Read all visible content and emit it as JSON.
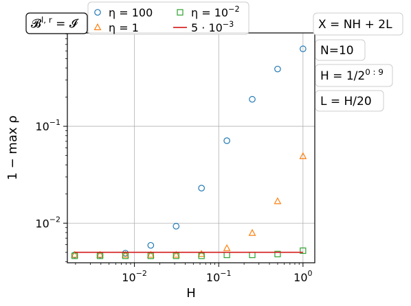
{
  "chart_data": {
    "type": "scatter",
    "x_scale": "log",
    "y_scale": "log",
    "grid": true,
    "xlabel": "H",
    "ylabel": "1 − max ρ",
    "xlim": [
      0.0016,
      1.38
    ],
    "ylim": [
      0.0039,
      0.92
    ],
    "x_ticks": [
      {
        "value": 0.01,
        "base": "10",
        "exp": "−2"
      },
      {
        "value": 0.1,
        "base": "10",
        "exp": "−1"
      },
      {
        "value": 1,
        "base": "10",
        "exp": "0"
      }
    ],
    "y_ticks": [
      {
        "value": 0.01,
        "base": "10",
        "exp": "−2"
      },
      {
        "value": 0.1,
        "base": "10",
        "exp": "−1"
      }
    ],
    "series": [
      {
        "name_parts": [
          "η = 100"
        ],
        "marker": "circle",
        "color": "#1f77b4",
        "x": [
          0.001953125,
          0.00390625,
          0.0078125,
          0.015625,
          0.03125,
          0.0625,
          0.125,
          0.25,
          0.5,
          1
        ],
        "y": [
          0.0047,
          0.0047,
          0.0049,
          0.0059,
          0.0093,
          0.023,
          0.071,
          0.19,
          0.39,
          0.63
        ]
      },
      {
        "name_parts": [
          "η = 1"
        ],
        "marker": "triangle",
        "color": "#ff7f0e",
        "x": [
          0.001953125,
          0.00390625,
          0.0078125,
          0.015625,
          0.03125,
          0.0625,
          0.125,
          0.25,
          0.5,
          1
        ],
        "y": [
          0.0047,
          0.0047,
          0.0047,
          0.0047,
          0.0047,
          0.0048,
          0.0055,
          0.0079,
          0.0168,
          0.049
        ]
      },
      {
        "name_parts": [
          "η = 10",
          "−2"
        ],
        "marker": "square",
        "color": "#2ca02c",
        "x": [
          0.001953125,
          0.00390625,
          0.0078125,
          0.015625,
          0.03125,
          0.0625,
          0.125,
          0.25,
          0.5,
          1
        ],
        "y": [
          0.0046,
          0.0046,
          0.0046,
          0.0046,
          0.0046,
          0.0046,
          0.0047,
          0.0047,
          0.0048,
          0.0052
        ]
      },
      {
        "name_parts": [
          "5 · 10",
          "−3"
        ],
        "marker": "line",
        "color": "#d62728",
        "x": [
          0.001953125,
          1
        ],
        "y": [
          0.005,
          0.005
        ]
      }
    ],
    "annotations": [
      {
        "id": "b-eq-i",
        "parts": [
          "𝓑",
          "l, r",
          " = 𝓘"
        ]
      },
      {
        "id": "x-def",
        "parts": [
          "X = NH + 2L"
        ]
      },
      {
        "id": "n-def",
        "parts": [
          "N=10"
        ]
      },
      {
        "id": "h-def",
        "parts": [
          "H = 1/2",
          "0 : 9"
        ]
      },
      {
        "id": "l-def",
        "parts": [
          "L = H/20"
        ]
      }
    ]
  }
}
